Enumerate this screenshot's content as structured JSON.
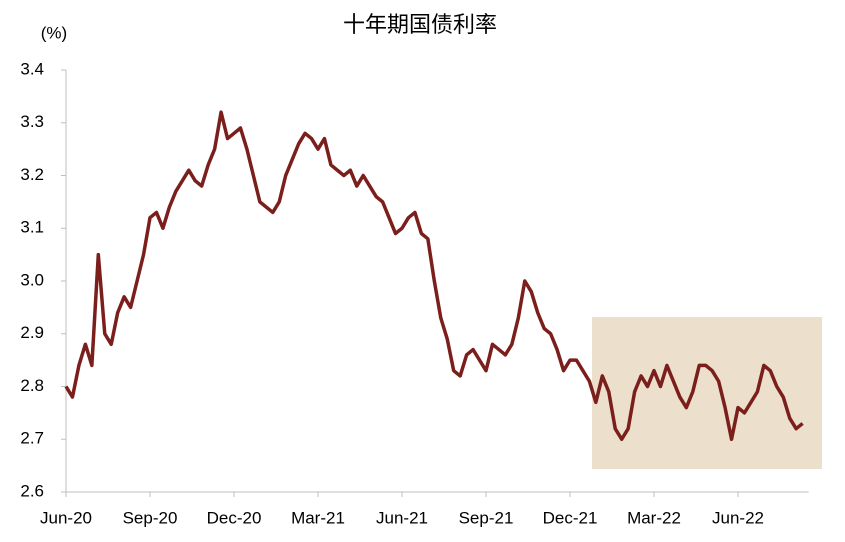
{
  "chart_data": {
    "type": "line",
    "title": "十年期国债利率",
    "y_label": "(%)",
    "categories": [
      "Jun-20",
      null,
      null,
      null,
      null,
      null,
      null,
      null,
      null,
      null,
      null,
      null,
      null,
      "Sep-20",
      null,
      null,
      null,
      null,
      null,
      null,
      null,
      null,
      null,
      null,
      null,
      null,
      "Dec-20",
      null,
      null,
      null,
      null,
      null,
      null,
      null,
      null,
      null,
      null,
      null,
      null,
      "Mar-21",
      null,
      null,
      null,
      null,
      null,
      null,
      null,
      null,
      null,
      null,
      null,
      null,
      "Jun-21",
      null,
      null,
      null,
      null,
      null,
      null,
      null,
      null,
      null,
      null,
      null,
      null,
      "Sep-21",
      null,
      null,
      null,
      null,
      null,
      null,
      null,
      null,
      null,
      null,
      null,
      null,
      "Dec-21",
      null,
      null,
      null,
      null,
      null,
      null,
      null,
      null,
      null,
      null,
      null,
      null,
      "Mar-22",
      null,
      null,
      null,
      null,
      null,
      null,
      null,
      null,
      null,
      null,
      null,
      null,
      "Jun-22",
      null,
      null,
      null,
      null,
      null,
      null,
      null,
      null,
      null,
      null
    ],
    "values": [
      2.8,
      2.78,
      2.84,
      2.88,
      2.84,
      3.05,
      2.9,
      2.88,
      2.94,
      2.97,
      2.95,
      3.0,
      3.05,
      3.12,
      3.13,
      3.1,
      3.14,
      3.17,
      3.19,
      3.21,
      3.19,
      3.18,
      3.22,
      3.25,
      3.32,
      3.27,
      3.28,
      3.29,
      3.25,
      3.2,
      3.15,
      3.14,
      3.13,
      3.15,
      3.2,
      3.23,
      3.26,
      3.28,
      3.27,
      3.25,
      3.27,
      3.22,
      3.21,
      3.2,
      3.21,
      3.18,
      3.2,
      3.18,
      3.16,
      3.15,
      3.12,
      3.09,
      3.1,
      3.12,
      3.13,
      3.09,
      3.08,
      3.0,
      2.93,
      2.89,
      2.83,
      2.82,
      2.86,
      2.87,
      2.85,
      2.83,
      2.88,
      2.87,
      2.86,
      2.88,
      2.93,
      3.0,
      2.98,
      2.94,
      2.91,
      2.9,
      2.87,
      2.83,
      2.85,
      2.85,
      2.83,
      2.81,
      2.77,
      2.82,
      2.79,
      2.72,
      2.7,
      2.72,
      2.79,
      2.82,
      2.8,
      2.83,
      2.8,
      2.84,
      2.81,
      2.78,
      2.76,
      2.79,
      2.84,
      2.84,
      2.83,
      2.81,
      2.76,
      2.7,
      2.76,
      2.75,
      2.77,
      2.79,
      2.84,
      2.83,
      2.8,
      2.78,
      2.74,
      2.72,
      2.73
    ],
    "color": "#7b1f1c",
    "ylim": [
      2.6,
      3.4
    ],
    "yticks": [
      2.6,
      2.7,
      2.8,
      2.9,
      {
        "value": 3,
        "label": "3.0"
      },
      3.1,
      3.2,
      3.3,
      3.4
    ]
  }
}
